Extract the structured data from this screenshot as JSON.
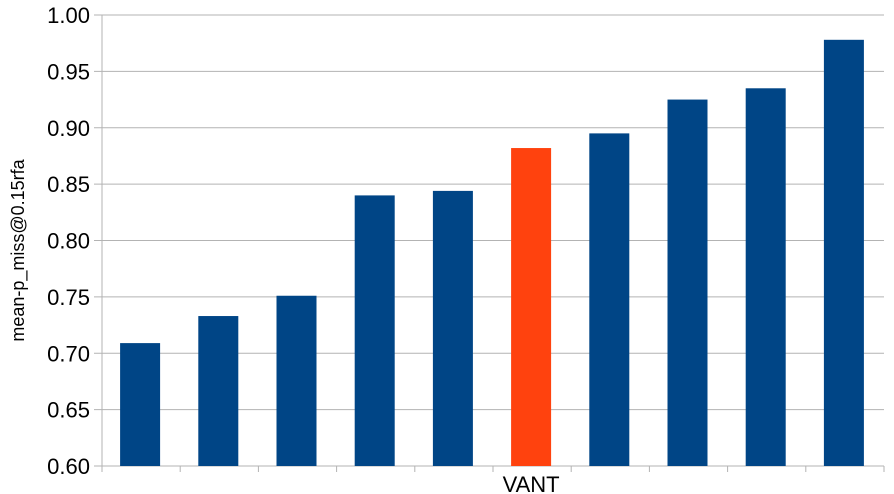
{
  "chart_data": {
    "type": "bar",
    "categories": [
      "",
      "",
      "",
      "",
      "",
      "VANT",
      "",
      "",
      "",
      ""
    ],
    "values": [
      0.709,
      0.733,
      0.751,
      0.84,
      0.844,
      0.882,
      0.895,
      0.925,
      0.935,
      0.978
    ],
    "highlight_index": 5,
    "title": "",
    "xlabel": "",
    "ylabel": "mean-p_miss@0.15rfa",
    "ylim": [
      0.6,
      1.0
    ],
    "yticks": [
      "0.60",
      "0.65",
      "0.70",
      "0.75",
      "0.80",
      "0.85",
      "0.90",
      "0.95",
      "1.00"
    ],
    "grid": true,
    "colors": {
      "bar": "#004586",
      "highlight": "#ff420e"
    }
  }
}
